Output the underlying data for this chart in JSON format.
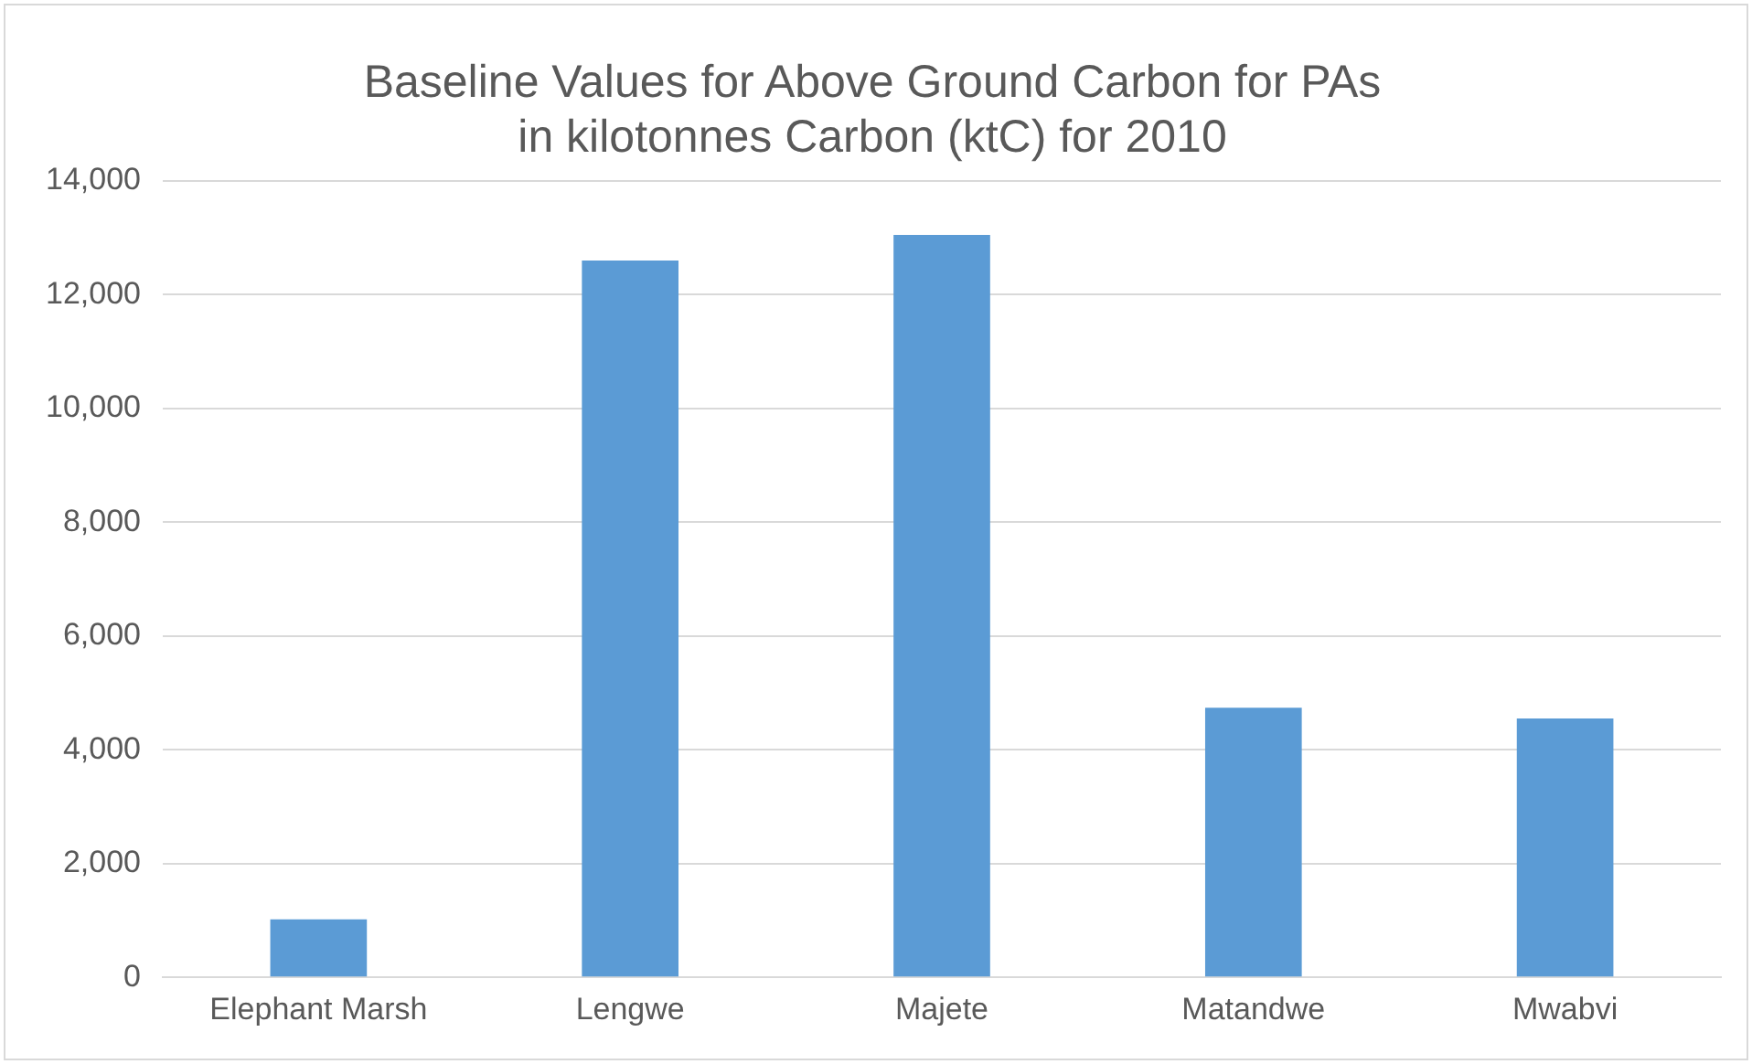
{
  "chart_data": {
    "type": "bar",
    "title": [
      "Baseline Values for Above Ground Carbon for PAs",
      "in kilotonnes Carbon (ktC) for 2010"
    ],
    "categories": [
      "Elephant Marsh",
      "Lengwe",
      "Majete",
      "Matandwe",
      "Mwabvi"
    ],
    "values": [
      1020,
      12600,
      13050,
      4740,
      4550
    ],
    "color": "#5b9bd5",
    "ylim": [
      0,
      14000
    ],
    "yticks": [
      {
        "value": 0,
        "label": "0"
      },
      {
        "value": 2000,
        "label": "2,000"
      },
      {
        "value": 4000,
        "label": "4,000"
      },
      {
        "value": 6000,
        "label": "6,000"
      },
      {
        "value": 8000,
        "label": "8,000"
      },
      {
        "value": 10000,
        "label": "10,000"
      },
      {
        "value": 12000,
        "label": "12,000"
      },
      {
        "value": 14000,
        "label": "14,000"
      }
    ],
    "grid": "y",
    "legend": false
  }
}
